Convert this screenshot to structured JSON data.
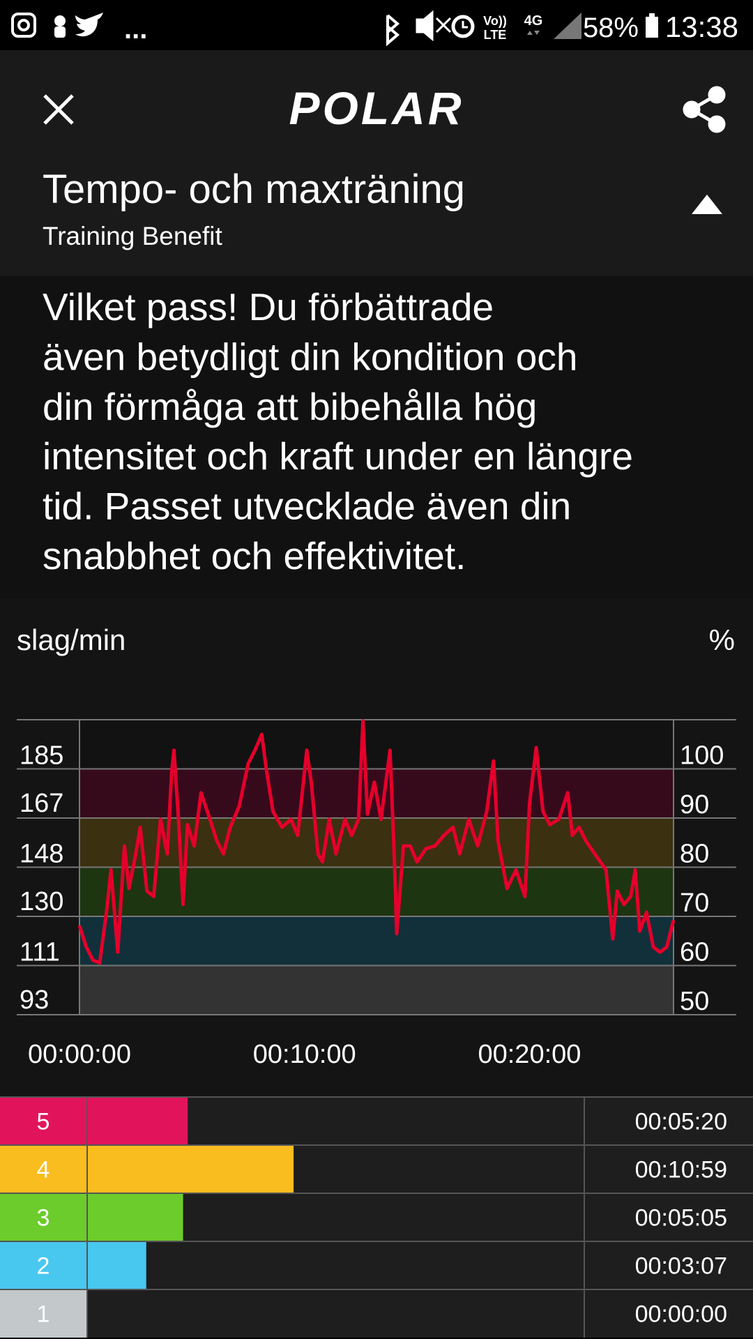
{
  "status_bar": {
    "more": "...",
    "volte_top": "Vo))",
    "volte_bottom": "LTE",
    "network": "4G",
    "battery": "58%",
    "time": "13:38"
  },
  "header": {
    "logo": "POLAR"
  },
  "title": "Tempo- och maxträning",
  "subtitle": "Training Benefit",
  "description": [
    "Vilket pass! Du förbättrade",
    "även betydligt din kondition och",
    "din förmåga att bibehålla hög",
    "intensitet och kraft under en längre",
    "tid. Passet utvecklade även din",
    "snabbhet och effektivitet."
  ],
  "chart_data": [
    {
      "type": "line",
      "y_label": "slag/min",
      "y2_label": "%",
      "color": "#e4002b",
      "x": [
        0,
        0.3,
        0.6,
        0.9,
        1.2,
        1.4,
        1.7,
        2.0,
        2.2,
        2.5,
        2.7,
        3.0,
        3.3,
        3.6,
        3.9,
        4.1,
        4.2,
        4.4,
        4.6,
        4.8,
        5.1,
        5.4,
        5.8,
        6.1,
        6.4,
        6.7,
        7.1,
        7.5,
        7.8,
        8.1,
        8.3,
        8.6,
        9.0,
        9.4,
        9.7,
        10.1,
        10.3,
        10.6,
        10.8,
        11.1,
        11.4,
        11.8,
        12.1,
        12.4,
        12.6,
        12.8,
        13.1,
        13.4,
        13.8,
        14.0,
        14.1,
        14.4,
        14.7,
        15.0,
        15.4,
        15.8,
        16.2,
        16.6,
        16.9,
        17.3,
        17.7,
        18.1,
        18.4,
        18.6,
        19.0,
        19.4,
        19.8,
        20.0,
        20.3,
        20.6,
        20.9,
        21.3,
        21.7,
        21.9,
        22.2,
        22.5,
        22.9,
        23.4,
        23.7,
        23.9,
        24.2,
        24.5,
        24.7,
        24.9,
        25.2,
        25.5,
        25.8,
        26.1,
        26.4
      ],
      "values": [
        126,
        118,
        113,
        112,
        131,
        147,
        116,
        156,
        140,
        153,
        163,
        139,
        137,
        166,
        153,
        184,
        192,
        166,
        134,
        164,
        156,
        176,
        166,
        158,
        153,
        163,
        171,
        187,
        192,
        198,
        185,
        169,
        163,
        166,
        160,
        192,
        180,
        153,
        150,
        166,
        153,
        166,
        160,
        166,
        203,
        168,
        180,
        166,
        192,
        150,
        123,
        156,
        156,
        150,
        155,
        156,
        160,
        163,
        153,
        166,
        156,
        169,
        188,
        158,
        140,
        147,
        137,
        172,
        193,
        169,
        164,
        166,
        176,
        160,
        163,
        158,
        153,
        147,
        121,
        139,
        134,
        137,
        147,
        124,
        131,
        118,
        116,
        118,
        128
      ],
      "xlim": [
        0,
        26.4
      ],
      "xticks": [
        {
          "value": 0,
          "label": "00:00:00"
        },
        {
          "value": 10,
          "label": "00:10:00"
        },
        {
          "value": 20,
          "label": "00:20:00"
        }
      ],
      "ylim": [
        92.5,
        203.5
      ],
      "yticks": [
        93,
        111,
        130,
        148,
        167,
        185
      ],
      "y2lim": [
        50,
        110
      ],
      "y2ticks": [
        50,
        60,
        70,
        80,
        90,
        100
      ],
      "zone_colors": [
        "#333333",
        "#12303a",
        "#1e3511",
        "#3b300f",
        "#370a1b",
        "#121212"
      ],
      "grid": true
    },
    {
      "type": "bar",
      "orientation": "horizontal",
      "categories": [
        "5",
        "4",
        "3",
        "2",
        "1"
      ],
      "values": [
        320,
        659,
        305,
        187,
        0
      ],
      "value_labels": [
        "00:05:20",
        "00:10:59",
        "00:05:05",
        "00:03:07",
        "00:00:00"
      ],
      "colors": [
        "#e1145b",
        "#f9bd1f",
        "#6ccc2b",
        "#48c7ef",
        "#c3c9cb"
      ],
      "xlim": [
        0,
        1590
      ]
    }
  ]
}
